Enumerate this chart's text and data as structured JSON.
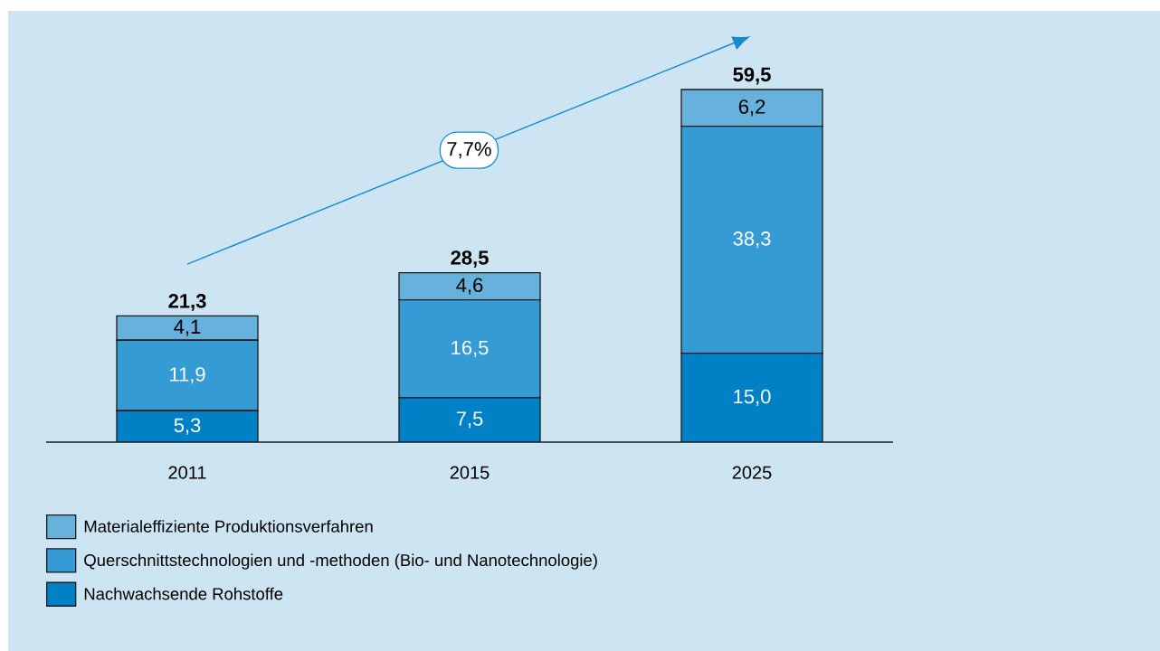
{
  "chart_data": {
    "type": "bar",
    "stacked": true,
    "categories": [
      "2011",
      "2015",
      "2025"
    ],
    "series": [
      {
        "name": "Nachwachsende Rohstoffe",
        "color": "#0081c6",
        "values": [
          5.3,
          7.5,
          15.0
        ],
        "value_labels": [
          "5,3",
          "7,5",
          "15,0"
        ]
      },
      {
        "name": "Querschnittstechnologien und -methoden (Bio- und Nanotechnologie)",
        "color": "#349bd4",
        "values": [
          11.9,
          16.5,
          38.3
        ],
        "value_labels": [
          "11,9",
          "16,5",
          "38,3"
        ]
      },
      {
        "name": "Materialeffiziente Produktionsverfahren",
        "color": "#67b2dd",
        "values": [
          4.1,
          4.6,
          6.2
        ],
        "value_labels": [
          "4,1",
          "4,6",
          "6,2"
        ]
      }
    ],
    "totals": [
      "21,3",
      "28,5",
      "59,5"
    ],
    "tick_labels": "x",
    "legend": "bottom",
    "annotations": [
      "7,7%"
    ]
  }
}
